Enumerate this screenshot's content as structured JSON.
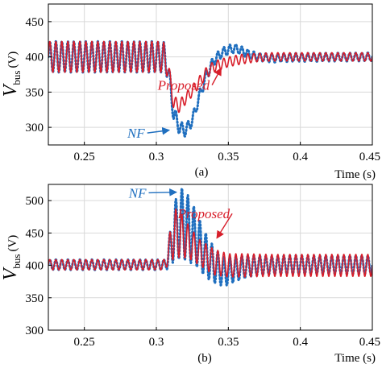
{
  "chart_data": [
    {
      "type": "line",
      "panel_label": "(a)",
      "xlabel": "Time (s)",
      "ylabel_main": "V",
      "ylabel_sub": "bus",
      "ylabel_unit": "(V)",
      "xlim": [
        0.225,
        0.45
      ],
      "ylim": [
        275,
        475
      ],
      "xticks": [
        0.25,
        0.3,
        0.35,
        0.4,
        0.45
      ],
      "xtick_labels": [
        "0.25",
        "0.3",
        "0.35",
        "0.4",
        "0.45"
      ],
      "yticks": [
        300,
        350,
        400,
        450
      ],
      "ytick_labels": [
        "300",
        "350",
        "400",
        "450"
      ],
      "grid": true,
      "series": [
        {
          "name": "NF",
          "color": "#1f6fbf",
          "style": "dotted",
          "ripple_freq_hz": 240,
          "envelope_t": [
            0.225,
            0.305,
            0.308,
            0.312,
            0.316,
            0.32,
            0.325,
            0.33,
            0.335,
            0.34,
            0.345,
            0.35,
            0.355,
            0.36,
            0.365,
            0.37,
            0.38,
            0.39,
            0.45
          ],
          "mean": [
            400,
            400,
            385,
            320,
            300,
            295,
            310,
            345,
            375,
            395,
            405,
            410,
            412,
            408,
            403,
            400,
            398,
            399,
            400
          ],
          "amplitude": [
            22,
            22,
            15,
            12,
            10,
            8,
            8,
            8,
            8,
            7,
            7,
            7,
            6,
            6,
            6,
            6,
            6,
            6,
            6
          ]
        },
        {
          "name": "Proposed",
          "color": "#d81e2a",
          "style": "solid",
          "ripple_freq_hz": 240,
          "envelope_t": [
            0.225,
            0.305,
            0.308,
            0.312,
            0.316,
            0.32,
            0.325,
            0.33,
            0.335,
            0.34,
            0.35,
            0.36,
            0.37,
            0.38,
            0.45
          ],
          "mean": [
            400,
            400,
            385,
            335,
            330,
            340,
            352,
            365,
            378,
            386,
            393,
            397,
            399,
            400,
            400
          ],
          "amplitude": [
            22,
            22,
            14,
            10,
            9,
            8,
            8,
            8,
            8,
            8,
            7,
            7,
            6,
            6,
            6
          ]
        }
      ],
      "annotations": [
        {
          "text": "NF",
          "color": "#1f6fbf",
          "label_x": 0.292,
          "label_y": 292,
          "arrow_to_x": 0.309,
          "arrow_to_y": 296
        },
        {
          "text": "Proposed",
          "color": "#d81e2a",
          "label_x": 0.337,
          "label_y": 360,
          "arrow_to_x": 0.345,
          "arrow_to_y": 384
        }
      ]
    },
    {
      "type": "line",
      "panel_label": "(b)",
      "xlabel": "Time (s)",
      "ylabel_main": "V",
      "ylabel_sub": "bus",
      "ylabel_unit": "(V)",
      "xlim": [
        0.225,
        0.45
      ],
      "ylim": [
        300,
        525
      ],
      "xticks": [
        0.25,
        0.3,
        0.35,
        0.4,
        0.45
      ],
      "xtick_labels": [
        "0.25",
        "0.3",
        "0.35",
        "0.4",
        "0.45"
      ],
      "yticks": [
        300,
        350,
        400,
        450,
        500
      ],
      "ytick_labels": [
        "300",
        "350",
        "400",
        "450",
        "500"
      ],
      "grid": true,
      "series": [
        {
          "name": "NF",
          "color": "#1f6fbf",
          "style": "dotted",
          "ripple_freq_hz": 240,
          "envelope_t": [
            0.225,
            0.306,
            0.309,
            0.313,
            0.318,
            0.323,
            0.328,
            0.333,
            0.338,
            0.343,
            0.348,
            0.353,
            0.36,
            0.37,
            0.38,
            0.39,
            0.45
          ],
          "mean": [
            401,
            401,
            420,
            455,
            465,
            455,
            440,
            420,
            405,
            395,
            390,
            393,
            397,
            400,
            400,
            401,
            401
          ],
          "amplitude": [
            8,
            8,
            25,
            45,
            55,
            50,
            42,
            35,
            30,
            25,
            22,
            20,
            18,
            15,
            14,
            14,
            14
          ]
        },
        {
          "name": "Proposed",
          "color": "#d81e2a",
          "style": "solid",
          "ripple_freq_hz": 240,
          "envelope_t": [
            0.225,
            0.306,
            0.309,
            0.313,
            0.318,
            0.323,
            0.33,
            0.34,
            0.35,
            0.36,
            0.38,
            0.45
          ],
          "mean": [
            401,
            401,
            425,
            450,
            445,
            435,
            420,
            405,
            400,
            400,
            400,
            400
          ],
          "amplitude": [
            8,
            8,
            22,
            38,
            33,
            25,
            20,
            20,
            18,
            18,
            17,
            17
          ]
        }
      ],
      "annotations": [
        {
          "text": "NF",
          "color": "#1f6fbf",
          "label_x": 0.293,
          "label_y": 512,
          "arrow_to_x": 0.314,
          "arrow_to_y": 513
        },
        {
          "text": "Proposed",
          "color": "#d81e2a",
          "label_x": 0.351,
          "label_y": 480,
          "arrow_to_x": 0.342,
          "arrow_to_y": 442
        }
      ]
    }
  ]
}
